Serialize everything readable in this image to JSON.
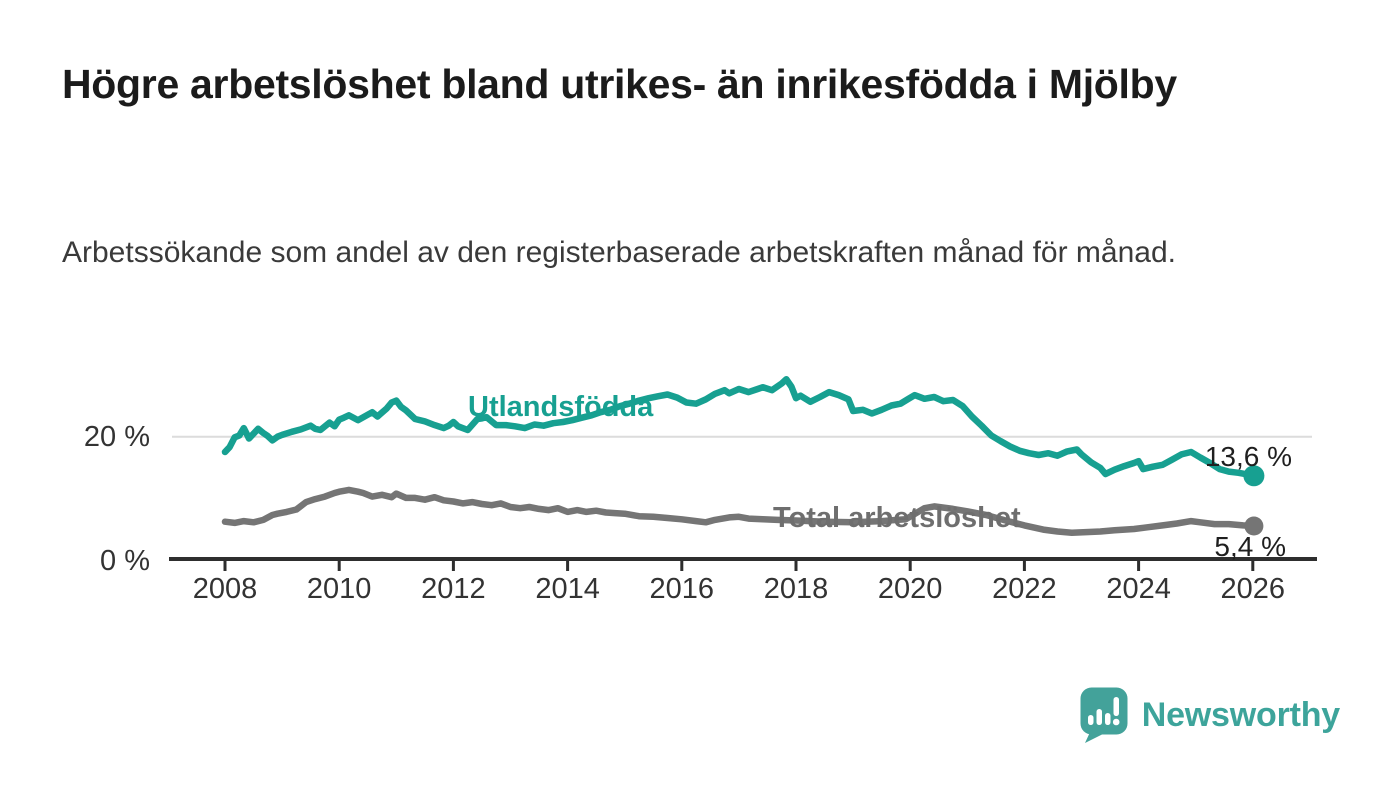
{
  "page": {
    "title": "Högre arbetslöshet bland utrikes- än inrikesfödda i Mjölby",
    "subtitle": "Arbetssökande som andel av den registerbaserade arbetskraften månad för månad."
  },
  "branding": {
    "logo_text": "Newsworthy",
    "logo_color": "#3da49b",
    "logo_icon": "speech-bubble-bar-chart-exclamation"
  },
  "chart_data": {
    "type": "line",
    "title": "Högre arbetslöshet bland utrikes- än inrikesfödda i Mjölby",
    "subtitle": "Arbetssökande som andel av den registerbaserade arbetskraften månad för månad.",
    "xlabel": "",
    "ylabel": "",
    "x_unit": "year (monthly series)",
    "y_unit": "percent",
    "xlim": [
      2007.0,
      2027.1
    ],
    "ylim": [
      0,
      31
    ],
    "grid": "single horizontal gridline at 20 %",
    "legend_position": "inline labels on lines",
    "xticks": [
      2008,
      2010,
      2012,
      2014,
      2016,
      2018,
      2020,
      2022,
      2024,
      2026
    ],
    "yticks": [
      {
        "value": 0,
        "label": "0 %"
      },
      {
        "value": 20,
        "label": "20 %"
      }
    ],
    "series": [
      {
        "name": "Utlandsfödda",
        "color": "#17a091",
        "end_value": 13.6,
        "end_label": "13,6 %",
        "points": [
          [
            2008.0,
            17.5
          ],
          [
            2008.08,
            18.3
          ],
          [
            2008.17,
            19.9
          ],
          [
            2008.25,
            20.2
          ],
          [
            2008.33,
            21.4
          ],
          [
            2008.42,
            19.7
          ],
          [
            2008.5,
            20.5
          ],
          [
            2008.58,
            21.3
          ],
          [
            2008.67,
            20.6
          ],
          [
            2008.75,
            20.1
          ],
          [
            2008.83,
            19.4
          ],
          [
            2008.92,
            20.0
          ],
          [
            2009.0,
            20.3
          ],
          [
            2009.17,
            20.8
          ],
          [
            2009.33,
            21.2
          ],
          [
            2009.5,
            21.8
          ],
          [
            2009.58,
            21.3
          ],
          [
            2009.67,
            21.1
          ],
          [
            2009.83,
            22.3
          ],
          [
            2009.92,
            21.7
          ],
          [
            2010.0,
            22.8
          ],
          [
            2010.08,
            23.1
          ],
          [
            2010.17,
            23.5
          ],
          [
            2010.33,
            22.7
          ],
          [
            2010.5,
            23.6
          ],
          [
            2010.58,
            24.0
          ],
          [
            2010.67,
            23.3
          ],
          [
            2010.83,
            24.6
          ],
          [
            2010.92,
            25.6
          ],
          [
            2011.0,
            25.9
          ],
          [
            2011.08,
            24.9
          ],
          [
            2011.17,
            24.3
          ],
          [
            2011.33,
            22.9
          ],
          [
            2011.5,
            22.5
          ],
          [
            2011.67,
            21.9
          ],
          [
            2011.83,
            21.4
          ],
          [
            2011.92,
            21.8
          ],
          [
            2012.0,
            22.4
          ],
          [
            2012.08,
            21.7
          ],
          [
            2012.25,
            21.1
          ],
          [
            2012.42,
            22.9
          ],
          [
            2012.5,
            23.0
          ],
          [
            2012.58,
            23.2
          ],
          [
            2012.75,
            21.9
          ],
          [
            2012.92,
            21.9
          ],
          [
            2013.08,
            21.7
          ],
          [
            2013.25,
            21.4
          ],
          [
            2013.42,
            22.0
          ],
          [
            2013.58,
            21.8
          ],
          [
            2013.75,
            22.2
          ],
          [
            2013.92,
            22.4
          ],
          [
            2014.08,
            22.7
          ],
          [
            2014.25,
            23.1
          ],
          [
            2014.42,
            23.5
          ],
          [
            2014.58,
            24.0
          ],
          [
            2014.75,
            24.4
          ],
          [
            2014.92,
            25.0
          ],
          [
            2015.08,
            25.4
          ],
          [
            2015.25,
            25.9
          ],
          [
            2015.42,
            26.3
          ],
          [
            2015.58,
            26.6
          ],
          [
            2015.75,
            26.9
          ],
          [
            2015.92,
            26.4
          ],
          [
            2016.08,
            25.6
          ],
          [
            2016.25,
            25.4
          ],
          [
            2016.42,
            26.1
          ],
          [
            2016.58,
            27.0
          ],
          [
            2016.75,
            27.6
          ],
          [
            2016.83,
            27.1
          ],
          [
            2017.0,
            27.8
          ],
          [
            2017.17,
            27.3
          ],
          [
            2017.33,
            27.8
          ],
          [
            2017.42,
            28.1
          ],
          [
            2017.58,
            27.6
          ],
          [
            2017.75,
            28.7
          ],
          [
            2017.83,
            29.4
          ],
          [
            2017.92,
            28.2
          ],
          [
            2018.0,
            26.3
          ],
          [
            2018.08,
            26.7
          ],
          [
            2018.25,
            25.7
          ],
          [
            2018.42,
            26.5
          ],
          [
            2018.58,
            27.3
          ],
          [
            2018.75,
            26.8
          ],
          [
            2018.92,
            26.1
          ],
          [
            2019.0,
            24.2
          ],
          [
            2019.17,
            24.4
          ],
          [
            2019.33,
            23.8
          ],
          [
            2019.5,
            24.4
          ],
          [
            2019.67,
            25.1
          ],
          [
            2019.83,
            25.4
          ],
          [
            2019.97,
            26.2
          ],
          [
            2020.08,
            26.8
          ],
          [
            2020.25,
            26.2
          ],
          [
            2020.42,
            26.5
          ],
          [
            2020.58,
            25.8
          ],
          [
            2020.75,
            26.0
          ],
          [
            2020.92,
            25.0
          ],
          [
            2021.08,
            23.3
          ],
          [
            2021.25,
            21.8
          ],
          [
            2021.42,
            20.2
          ],
          [
            2021.58,
            19.3
          ],
          [
            2021.75,
            18.4
          ],
          [
            2021.92,
            17.7
          ],
          [
            2022.08,
            17.3
          ],
          [
            2022.25,
            17.0
          ],
          [
            2022.42,
            17.3
          ],
          [
            2022.58,
            16.9
          ],
          [
            2022.75,
            17.6
          ],
          [
            2022.92,
            17.9
          ],
          [
            2023.0,
            17.1
          ],
          [
            2023.17,
            15.8
          ],
          [
            2023.33,
            14.9
          ],
          [
            2023.42,
            13.9
          ],
          [
            2023.58,
            14.6
          ],
          [
            2023.75,
            15.2
          ],
          [
            2023.92,
            15.7
          ],
          [
            2024.0,
            16.0
          ],
          [
            2024.08,
            14.7
          ],
          [
            2024.25,
            15.1
          ],
          [
            2024.42,
            15.4
          ],
          [
            2024.58,
            16.2
          ],
          [
            2024.75,
            17.1
          ],
          [
            2024.92,
            17.5
          ],
          [
            2025.08,
            16.6
          ],
          [
            2025.25,
            15.7
          ],
          [
            2025.42,
            14.7
          ],
          [
            2025.58,
            14.3
          ],
          [
            2025.75,
            14.1
          ],
          [
            2025.92,
            13.8
          ],
          [
            2026.02,
            13.6
          ]
        ]
      },
      {
        "name": "Total arbetslöshet",
        "color": "#757575",
        "end_value": 5.4,
        "end_label": "5,4 %",
        "points": [
          [
            2008.0,
            6.1
          ],
          [
            2008.17,
            5.9
          ],
          [
            2008.33,
            6.2
          ],
          [
            2008.5,
            6.0
          ],
          [
            2008.67,
            6.4
          ],
          [
            2008.83,
            7.2
          ],
          [
            2008.92,
            7.4
          ],
          [
            2009.08,
            7.7
          ],
          [
            2009.25,
            8.1
          ],
          [
            2009.42,
            9.3
          ],
          [
            2009.58,
            9.8
          ],
          [
            2009.75,
            10.2
          ],
          [
            2009.92,
            10.8
          ],
          [
            2010.0,
            11.0
          ],
          [
            2010.17,
            11.3
          ],
          [
            2010.33,
            11.0
          ],
          [
            2010.42,
            10.8
          ],
          [
            2010.58,
            10.2
          ],
          [
            2010.75,
            10.5
          ],
          [
            2010.92,
            10.1
          ],
          [
            2011.0,
            10.7
          ],
          [
            2011.17,
            10.0
          ],
          [
            2011.33,
            10.0
          ],
          [
            2011.5,
            9.7
          ],
          [
            2011.67,
            10.1
          ],
          [
            2011.83,
            9.6
          ],
          [
            2012.0,
            9.4
          ],
          [
            2012.17,
            9.1
          ],
          [
            2012.33,
            9.3
          ],
          [
            2012.5,
            9.0
          ],
          [
            2012.67,
            8.8
          ],
          [
            2012.83,
            9.1
          ],
          [
            2013.0,
            8.5
          ],
          [
            2013.17,
            8.3
          ],
          [
            2013.33,
            8.5
          ],
          [
            2013.5,
            8.2
          ],
          [
            2013.67,
            8.0
          ],
          [
            2013.83,
            8.3
          ],
          [
            2014.0,
            7.7
          ],
          [
            2014.17,
            8.0
          ],
          [
            2014.33,
            7.7
          ],
          [
            2014.5,
            7.9
          ],
          [
            2014.67,
            7.6
          ],
          [
            2014.83,
            7.5
          ],
          [
            2015.0,
            7.4
          ],
          [
            2015.25,
            7.0
          ],
          [
            2015.5,
            6.9
          ],
          [
            2015.75,
            6.7
          ],
          [
            2016.0,
            6.5
          ],
          [
            2016.25,
            6.2
          ],
          [
            2016.42,
            6.0
          ],
          [
            2016.58,
            6.4
          ],
          [
            2016.83,
            6.8
          ],
          [
            2017.0,
            6.9
          ],
          [
            2017.17,
            6.6
          ],
          [
            2017.42,
            6.5
          ],
          [
            2017.67,
            6.4
          ],
          [
            2018.0,
            6.3
          ],
          [
            2018.5,
            6.1
          ],
          [
            2019.0,
            6.0
          ],
          [
            2019.5,
            6.2
          ],
          [
            2019.92,
            6.5
          ],
          [
            2020.25,
            8.3
          ],
          [
            2020.42,
            8.6
          ],
          [
            2020.75,
            8.2
          ],
          [
            2021.0,
            7.8
          ],
          [
            2021.33,
            7.2
          ],
          [
            2021.67,
            6.3
          ],
          [
            2022.0,
            5.5
          ],
          [
            2022.33,
            4.8
          ],
          [
            2022.58,
            4.5
          ],
          [
            2022.83,
            4.3
          ],
          [
            2023.08,
            4.4
          ],
          [
            2023.33,
            4.5
          ],
          [
            2023.58,
            4.7
          ],
          [
            2023.92,
            4.9
          ],
          [
            2024.17,
            5.2
          ],
          [
            2024.42,
            5.5
          ],
          [
            2024.67,
            5.8
          ],
          [
            2024.92,
            6.2
          ],
          [
            2025.08,
            6.0
          ],
          [
            2025.33,
            5.7
          ],
          [
            2025.58,
            5.7
          ],
          [
            2025.83,
            5.5
          ],
          [
            2026.02,
            5.4
          ]
        ]
      }
    ]
  }
}
